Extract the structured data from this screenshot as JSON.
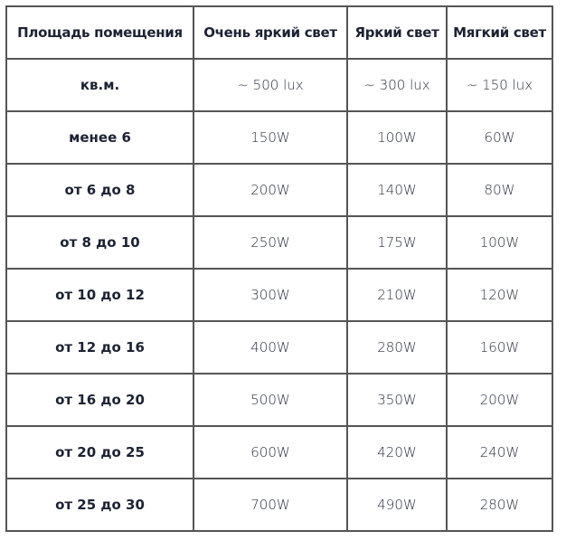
{
  "headers": [
    "Площадь помещения",
    "Очень яркий свет",
    "Яркий свет",
    "Мягкий свет"
  ],
  "rows": [
    [
      "кв.м.",
      "~ 500 lux",
      "~ 300 lux",
      "~ 150 lux"
    ],
    [
      "менее 6",
      "150W",
      "100W",
      "60W"
    ],
    [
      "от 6 до 8",
      "200W",
      "140W",
      "80W"
    ],
    [
      "от 8 до 10",
      "250W",
      "175W",
      "100W"
    ],
    [
      "от 10 до 12",
      "300W",
      "210W",
      "120W"
    ],
    [
      "от 12 до 16",
      "400W",
      "280W",
      "160W"
    ],
    [
      "от 16 до 20",
      "500W",
      "350W",
      "200W"
    ],
    [
      "от 20 до 25",
      "600W",
      "420W",
      "240W"
    ],
    [
      "от 25 до 30",
      "700W",
      "490W",
      "280W"
    ]
  ]
}
